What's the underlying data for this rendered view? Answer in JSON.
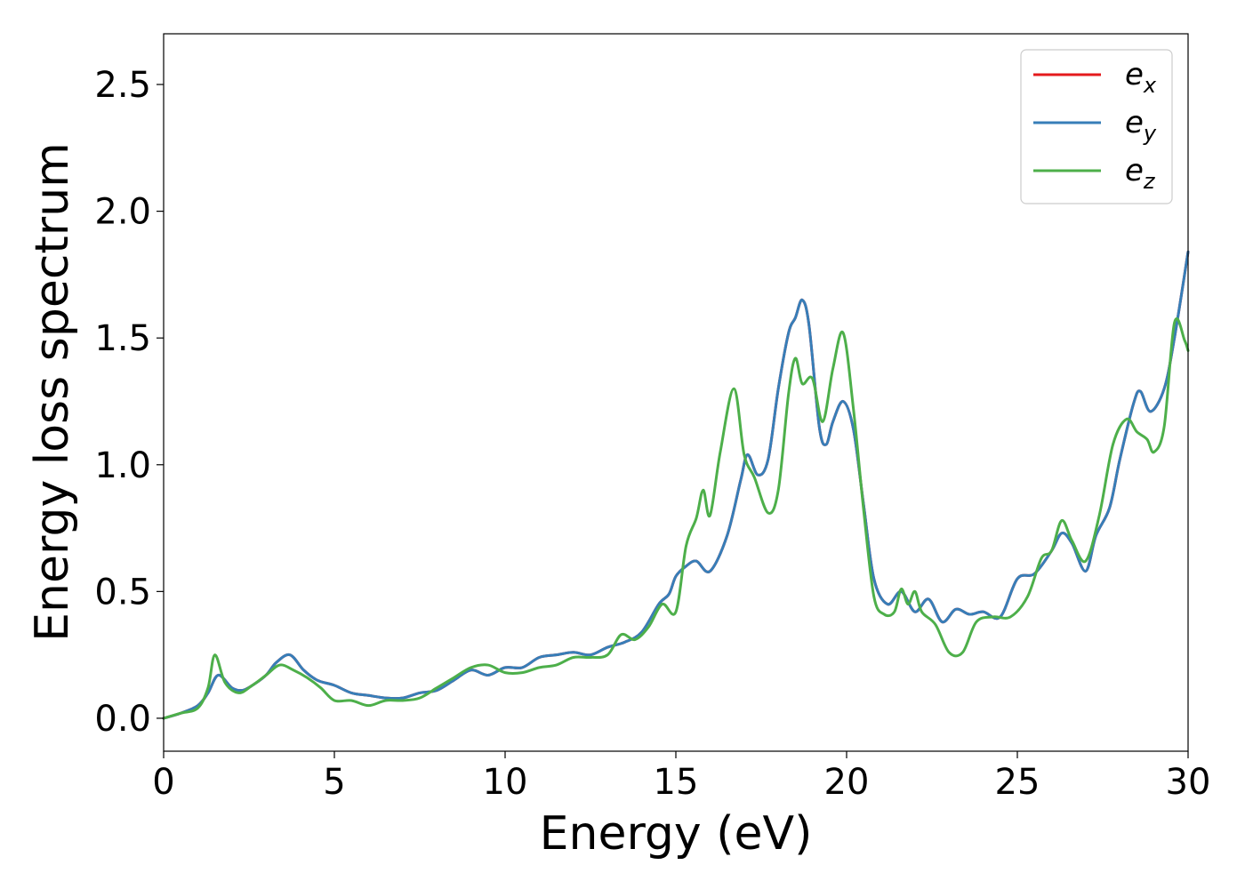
{
  "chart_data": {
    "type": "line",
    "xlabel": "Energy (eV)",
    "ylabel": "Energy loss spectrum",
    "xlim": [
      0,
      30
    ],
    "ylim": [
      -0.13,
      2.7
    ],
    "xticks": [
      0,
      5,
      10,
      15,
      20,
      25,
      30
    ],
    "xtick_labels": [
      "0",
      "5",
      "10",
      "15",
      "20",
      "25",
      "30"
    ],
    "yticks": [
      0.0,
      0.5,
      1.0,
      1.5,
      2.0,
      2.5
    ],
    "ytick_labels": [
      "0.0",
      "0.5",
      "1.0",
      "1.5",
      "2.0",
      "2.5"
    ],
    "grid": false,
    "legend_position": "top-right",
    "series": [
      {
        "name": "e_x",
        "legend": {
          "base": "e",
          "sub": "x"
        },
        "color": "#e41a1c",
        "x": [
          0,
          0.5,
          1.0,
          1.3,
          1.6,
          2.0,
          2.3,
          2.6,
          3.0,
          3.3,
          3.7,
          4.1,
          4.5,
          5.0,
          5.5,
          6.0,
          6.5,
          7.0,
          7.5,
          8.0,
          8.5,
          9.0,
          9.5,
          10.0,
          10.5,
          11.0,
          11.5,
          12.0,
          12.5,
          13.0,
          13.5,
          14.0,
          14.5,
          14.8,
          15.0,
          15.3,
          15.6,
          16.0,
          16.5,
          16.9,
          17.1,
          17.4,
          17.7,
          18.0,
          18.3,
          18.5,
          18.7,
          18.9,
          19.2,
          19.4,
          19.6,
          19.9,
          20.2,
          20.5,
          20.8,
          21.2,
          21.6,
          22.0,
          22.4,
          22.8,
          23.2,
          23.6,
          24.0,
          24.5,
          25.0,
          25.5,
          26.0,
          26.3,
          26.6,
          27.0,
          27.3,
          27.7,
          28.0,
          28.4,
          28.6,
          28.9,
          29.3,
          29.6,
          30.0
        ],
        "y": [
          0.0,
          0.02,
          0.05,
          0.1,
          0.17,
          0.12,
          0.11,
          0.13,
          0.17,
          0.22,
          0.25,
          0.19,
          0.15,
          0.13,
          0.1,
          0.09,
          0.08,
          0.08,
          0.1,
          0.11,
          0.15,
          0.19,
          0.17,
          0.2,
          0.2,
          0.24,
          0.25,
          0.26,
          0.25,
          0.28,
          0.3,
          0.34,
          0.45,
          0.49,
          0.56,
          0.6,
          0.62,
          0.58,
          0.72,
          0.94,
          1.04,
          0.96,
          1.02,
          1.3,
          1.52,
          1.58,
          1.65,
          1.55,
          1.15,
          1.08,
          1.17,
          1.25,
          1.14,
          0.84,
          0.55,
          0.45,
          0.5,
          0.42,
          0.47,
          0.38,
          0.43,
          0.41,
          0.42,
          0.4,
          0.55,
          0.57,
          0.66,
          0.73,
          0.69,
          0.58,
          0.72,
          0.83,
          1.02,
          1.24,
          1.29,
          1.21,
          1.3,
          1.5,
          1.84
        ]
      },
      {
        "name": "e_y",
        "legend": {
          "base": "e",
          "sub": "y"
        },
        "color": "#377eb8",
        "x": [
          0,
          0.5,
          1.0,
          1.3,
          1.6,
          2.0,
          2.3,
          2.6,
          3.0,
          3.3,
          3.7,
          4.1,
          4.5,
          5.0,
          5.5,
          6.0,
          6.5,
          7.0,
          7.5,
          8.0,
          8.5,
          9.0,
          9.5,
          10.0,
          10.5,
          11.0,
          11.5,
          12.0,
          12.5,
          13.0,
          13.5,
          14.0,
          14.5,
          14.8,
          15.0,
          15.3,
          15.6,
          16.0,
          16.5,
          16.9,
          17.1,
          17.4,
          17.7,
          18.0,
          18.3,
          18.5,
          18.7,
          18.9,
          19.2,
          19.4,
          19.6,
          19.9,
          20.2,
          20.5,
          20.8,
          21.2,
          21.6,
          22.0,
          22.4,
          22.8,
          23.2,
          23.6,
          24.0,
          24.5,
          25.0,
          25.5,
          26.0,
          26.3,
          26.6,
          27.0,
          27.3,
          27.7,
          28.0,
          28.4,
          28.6,
          28.9,
          29.3,
          29.6,
          30.0
        ],
        "y": [
          0.0,
          0.02,
          0.05,
          0.1,
          0.17,
          0.12,
          0.11,
          0.13,
          0.17,
          0.22,
          0.25,
          0.19,
          0.15,
          0.13,
          0.1,
          0.09,
          0.08,
          0.08,
          0.1,
          0.11,
          0.15,
          0.19,
          0.17,
          0.2,
          0.2,
          0.24,
          0.25,
          0.26,
          0.25,
          0.28,
          0.3,
          0.34,
          0.45,
          0.49,
          0.56,
          0.6,
          0.62,
          0.58,
          0.72,
          0.94,
          1.04,
          0.96,
          1.02,
          1.3,
          1.52,
          1.58,
          1.65,
          1.55,
          1.15,
          1.08,
          1.17,
          1.25,
          1.14,
          0.84,
          0.55,
          0.45,
          0.5,
          0.42,
          0.47,
          0.38,
          0.43,
          0.41,
          0.42,
          0.4,
          0.55,
          0.57,
          0.66,
          0.73,
          0.69,
          0.58,
          0.72,
          0.83,
          1.02,
          1.24,
          1.29,
          1.21,
          1.3,
          1.5,
          1.84
        ]
      },
      {
        "name": "e_z",
        "legend": {
          "base": "e",
          "sub": "z"
        },
        "color": "#4daf4a",
        "x": [
          0,
          0.5,
          1.0,
          1.3,
          1.5,
          1.8,
          2.2,
          2.6,
          3.0,
          3.4,
          3.8,
          4.2,
          4.6,
          5.0,
          5.5,
          6.0,
          6.5,
          7.0,
          7.5,
          8.0,
          8.5,
          9.0,
          9.5,
          10.0,
          10.5,
          11.0,
          11.5,
          12.0,
          12.5,
          13.0,
          13.4,
          13.8,
          14.2,
          14.6,
          15.0,
          15.3,
          15.6,
          15.8,
          16.0,
          16.3,
          16.7,
          17.0,
          17.3,
          17.7,
          18.0,
          18.3,
          18.5,
          18.7,
          19.0,
          19.3,
          19.6,
          19.9,
          20.2,
          20.5,
          20.8,
          21.1,
          21.4,
          21.6,
          21.8,
          22.0,
          22.2,
          22.6,
          23.0,
          23.4,
          23.8,
          24.3,
          24.8,
          25.3,
          25.7,
          26.0,
          26.3,
          26.6,
          27.0,
          27.4,
          27.8,
          28.2,
          28.5,
          28.8,
          29.0,
          29.3,
          29.6,
          29.9,
          30.0
        ],
        "y": [
          0.0,
          0.02,
          0.04,
          0.12,
          0.25,
          0.14,
          0.1,
          0.13,
          0.17,
          0.21,
          0.19,
          0.16,
          0.12,
          0.07,
          0.07,
          0.05,
          0.07,
          0.07,
          0.08,
          0.12,
          0.16,
          0.2,
          0.21,
          0.18,
          0.18,
          0.2,
          0.21,
          0.24,
          0.24,
          0.25,
          0.33,
          0.31,
          0.36,
          0.45,
          0.42,
          0.68,
          0.79,
          0.9,
          0.8,
          1.05,
          1.3,
          1.04,
          0.95,
          0.81,
          0.9,
          1.28,
          1.42,
          1.32,
          1.34,
          1.17,
          1.38,
          1.52,
          1.22,
          0.82,
          0.48,
          0.41,
          0.42,
          0.51,
          0.45,
          0.5,
          0.42,
          0.37,
          0.26,
          0.26,
          0.38,
          0.4,
          0.4,
          0.48,
          0.63,
          0.66,
          0.78,
          0.7,
          0.62,
          0.8,
          1.08,
          1.18,
          1.13,
          1.1,
          1.05,
          1.15,
          1.56,
          1.49,
          1.45
        ]
      }
    ]
  }
}
